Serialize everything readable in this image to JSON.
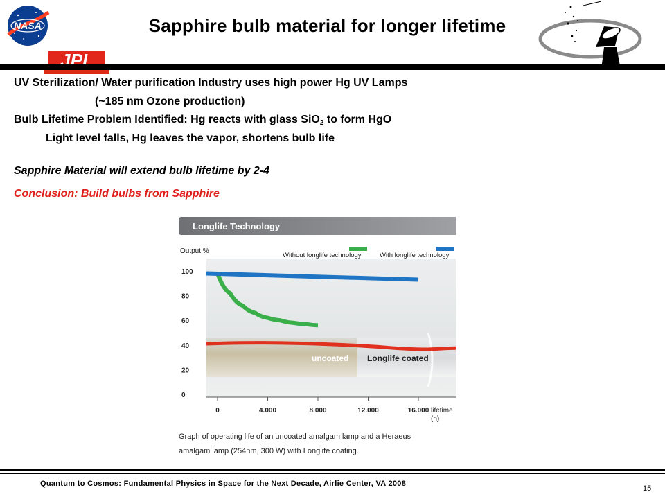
{
  "header": {
    "title": "Sapphire bulb material for longer lifetime",
    "nasa_logo_text": "NASA",
    "jpl_logo_text": "JPL"
  },
  "body": {
    "line1": "UV Sterilization/ Water purification Industry uses high power Hg UV  Lamps",
    "line2": "(~185 nm Ozone production)",
    "line3_part1": "Bulb Lifetime Problem Identified:  Hg reacts with glass SiO",
    "line3_sub": "2",
    "line3_part2": " to form HgO",
    "line4": "Light level falls, Hg leaves the vapor, shortens bulb life",
    "line5": "Sapphire Material will extend bulb lifetime by 2-4",
    "line6": "Conclusion: Build bulbs from Sapphire"
  },
  "colors": {
    "conclusion": "#e0201a",
    "without_series": "#3aae49",
    "with_series": "#1f74c4",
    "red_line": "#e0301e",
    "panel_header": "#7c7d80"
  },
  "chart_data": {
    "type": "line",
    "title": "Longlife Technology",
    "ylabel": "Output %",
    "xlabel": "lifetime (h)",
    "xlabel_line1": "lifetime",
    "xlabel_line2": "(h)",
    "xlim": [
      0,
      18000
    ],
    "ylim": [
      0,
      100
    ],
    "x_ticks": [
      0,
      4000,
      8000,
      12000,
      16000
    ],
    "x_tick_labels": [
      "0",
      "4.000",
      "8.000",
      "12.000",
      "16.000"
    ],
    "y_ticks": [
      0,
      20,
      40,
      60,
      80,
      100
    ],
    "y_tick_labels": [
      "0",
      "20",
      "40",
      "60",
      "80",
      "100"
    ],
    "series": [
      {
        "name": "Without longlife technology",
        "color": "#3aae49",
        "x": [
          0,
          1000,
          2000,
          3000,
          4000,
          5000,
          6000,
          7000,
          8000
        ],
        "y": [
          98,
          82,
          72,
          66,
          62,
          60,
          58,
          57,
          56
        ]
      },
      {
        "name": "With longlife technology",
        "color": "#1f74c4",
        "x": [
          0,
          16000
        ],
        "y": [
          98,
          93
        ]
      }
    ],
    "image_labels": [
      "uncoated",
      "Longlife coated"
    ],
    "legend_position": "top-right",
    "caption_line1": "Graph of operating life of an uncoated amalgam lamp and a Heraeus",
    "caption_line2": "amalgam lamp (254nm, 300 W) with Longlife coating."
  },
  "footer": {
    "text": "Quantum to Cosmos: Fundamental Physics in Space for the Next Decade, Airlie Center, VA 2008",
    "page": "15"
  }
}
